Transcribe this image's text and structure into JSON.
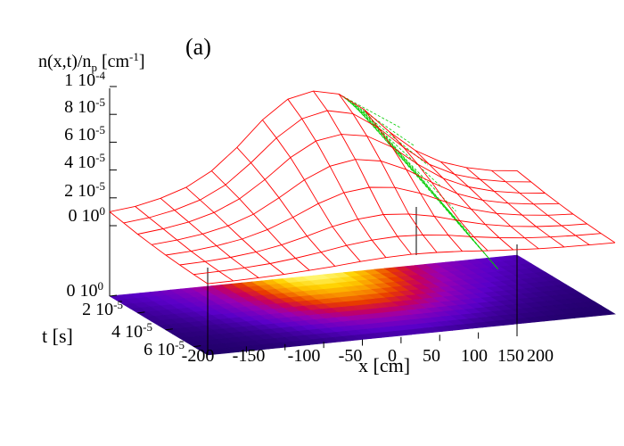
{
  "panel_label": "(a)",
  "chart_data": {
    "type": "surface3d",
    "title": "",
    "zlabel": {
      "main": "n(x,t)/n",
      "sub": "p",
      "unit_pre": " [cm",
      "unit_exp": "-1",
      "unit_post": "]"
    },
    "xlabel": "x [cm]",
    "ylabel": "t [s]",
    "xlim": [
      -200,
      200
    ],
    "tlim": [
      0,
      7e-05
    ],
    "zlim": [
      0,
      0.0001
    ],
    "x_ticks": [
      "-200",
      "-150",
      "-100",
      "-50",
      "0",
      "50",
      "100",
      "150",
      "200"
    ],
    "t_ticks": [
      {
        "mant": "0 10",
        "exp": "0"
      },
      {
        "mant": "2 10",
        "exp": "-5"
      },
      {
        "mant": "4 10",
        "exp": "-5"
      },
      {
        "mant": "6 10",
        "exp": "-5"
      }
    ],
    "z_ticks": [
      {
        "mant": "0 10",
        "exp": "0"
      },
      {
        "mant": "2 10",
        "exp": "-5"
      },
      {
        "mant": "4 10",
        "exp": "-5"
      },
      {
        "mant": "6 10",
        "exp": "-5"
      },
      {
        "mant": "8 10",
        "exp": "-5"
      },
      {
        "mant": "1 10",
        "exp": "-4"
      }
    ],
    "t_sections_s": [
      0,
      1e-05,
      2e-05,
      3e-05,
      4e-05,
      5e-05,
      6e-05,
      7e-05
    ],
    "x_grid_cm": [
      -200,
      -175,
      -150,
      -125,
      -100,
      -75,
      -50,
      -25,
      0,
      25,
      50,
      75,
      100,
      125,
      150,
      175,
      200
    ],
    "surface_z": [
      [
        1e-05,
        1.2e-05,
        1.6e-05,
        2.2e-05,
        3.2e-05,
        4.7e-05,
        6.5e-05,
        7.8e-05,
        8.2e-05,
        7.8e-05,
        6.5e-05,
        4.7e-05,
        3.2e-05,
        2.2e-05,
        1.6e-05,
        1.2e-05,
        1e-05
      ],
      [
        8e-06,
        1e-05,
        1.35e-05,
        1.9e-05,
        2.8e-05,
        4.2e-05,
        5.8e-05,
        7e-05,
        7.4e-05,
        7e-05,
        5.8e-05,
        4.2e-05,
        2.8e-05,
        1.9e-05,
        1.35e-05,
        1e-05,
        8e-06
      ],
      [
        6e-06,
        8e-06,
        1.1e-05,
        1.6e-05,
        2.4e-05,
        3.6e-05,
        5e-05,
        6e-05,
        6.3e-05,
        6e-05,
        5e-05,
        3.6e-05,
        2.4e-05,
        1.6e-05,
        1.1e-05,
        8e-06,
        6e-06
      ],
      [
        4.5e-06,
        6e-06,
        8.5e-06,
        1.25e-05,
        1.9e-05,
        2.9e-05,
        4e-05,
        4.8e-05,
        5.1e-05,
        4.8e-05,
        4e-05,
        2.9e-05,
        1.9e-05,
        1.25e-05,
        8.5e-06,
        6e-06,
        4.5e-06
      ],
      [
        3e-06,
        4e-06,
        6e-06,
        9e-06,
        1.4e-05,
        2.1e-05,
        2.9e-05,
        3.5e-05,
        3.7e-05,
        3.5e-05,
        2.9e-05,
        2.1e-05,
        1.4e-05,
        9e-06,
        6e-06,
        4e-06,
        3e-06
      ],
      [
        2e-06,
        2.6e-06,
        3.8e-06,
        5.8e-06,
        9e-06,
        1.35e-05,
        1.85e-05,
        2.2e-05,
        2.35e-05,
        2.2e-05,
        1.85e-05,
        1.35e-05,
        9e-06,
        5.8e-06,
        3.8e-06,
        2.6e-06,
        2e-06
      ],
      [
        1.2e-06,
        1.6e-06,
        2.3e-06,
        3.5e-06,
        5.5e-06,
        8e-06,
        1.1e-05,
        1.3e-05,
        1.38e-05,
        1.3e-05,
        1.1e-05,
        8e-06,
        5.5e-06,
        3.5e-06,
        2.3e-06,
        1.6e-06,
        1.2e-06
      ],
      [
        6e-07,
        8e-07,
        1.2e-06,
        1.8e-06,
        2.8e-06,
        4e-06,
        5.5e-06,
        6.5e-06,
        7e-06,
        6.5e-06,
        5.5e-06,
        4e-06,
        2.8e-06,
        1.8e-06,
        1.2e-06,
        8e-07,
        6e-07
      ]
    ],
    "colors": {
      "surface_mesh": "#ff0000",
      "hidden_mesh": "#00cc00",
      "axes": "#000000",
      "palette": [
        "#1e0064",
        "#5a00c8",
        "#9600b4",
        "#c8005a",
        "#e83a00",
        "#f88c00",
        "#ffd200",
        "#ffff8c"
      ]
    }
  }
}
